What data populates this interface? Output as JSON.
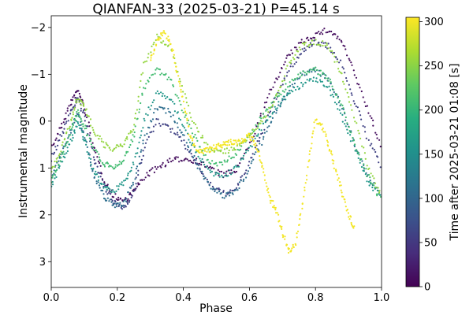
{
  "chart_data": {
    "type": "scatter",
    "title": "QIANFAN-33 (2025-03-21) P=45.14 s",
    "xlabel": "Phase",
    "ylabel": "Instrumental magnitude",
    "xlim": [
      0.0,
      1.0
    ],
    "ylim": [
      3.55,
      -2.25
    ],
    "y_inverted": true,
    "x_ticks": [
      "0.0",
      "0.2",
      "0.4",
      "0.6",
      "0.8",
      "1.0"
    ],
    "y_ticks": [
      "−2",
      "−1",
      "0",
      "1",
      "2",
      "3"
    ],
    "grid": false,
    "colorbar": {
      "label": "Time after 2025-03-21 01:08 [s]",
      "range": [
        0,
        305
      ],
      "ticks": [
        "0",
        "50",
        "100",
        "150",
        "200",
        "250",
        "300"
      ],
      "colormap": "viridis"
    },
    "series": [
      {
        "t": 10,
        "phase": [
          0.0,
          0.03,
          0.06,
          0.08,
          0.1,
          0.13,
          0.16,
          0.19,
          0.22,
          0.25,
          0.28,
          0.32,
          0.36,
          0.4,
          0.44,
          0.48,
          0.52,
          0.56,
          0.6,
          0.64,
          0.68,
          0.72,
          0.76,
          0.8,
          0.84,
          0.88,
          0.92,
          0.96,
          1.0
        ],
        "mag": [
          0.6,
          0.1,
          -0.4,
          -0.65,
          -0.3,
          0.6,
          1.25,
          1.6,
          1.7,
          1.5,
          1.2,
          1.0,
          0.85,
          0.8,
          0.85,
          1.0,
          1.15,
          1.05,
          0.5,
          -0.2,
          -0.9,
          -1.4,
          -1.7,
          -1.85,
          -1.95,
          -1.7,
          -1.0,
          -0.2,
          0.6
        ]
      },
      {
        "t": 60,
        "phase": [
          0.0,
          0.03,
          0.06,
          0.08,
          0.1,
          0.13,
          0.16,
          0.19,
          0.22,
          0.25,
          0.28,
          0.32,
          0.36,
          0.4,
          0.44,
          0.48,
          0.52,
          0.56,
          0.6,
          0.64,
          0.68,
          0.72,
          0.76,
          0.8,
          0.84,
          0.88,
          0.92,
          0.96,
          1.0
        ],
        "mag": [
          0.8,
          0.3,
          -0.2,
          -0.5,
          -0.1,
          0.8,
          1.4,
          1.75,
          1.85,
          1.5,
          0.6,
          0.0,
          0.15,
          0.45,
          0.9,
          1.35,
          1.55,
          1.45,
          0.9,
          0.2,
          -0.5,
          -1.1,
          -1.5,
          -1.7,
          -1.6,
          -1.2,
          -0.4,
          0.4,
          1.0
        ]
      },
      {
        "t": 110,
        "phase": [
          0.0,
          0.03,
          0.06,
          0.08,
          0.1,
          0.13,
          0.16,
          0.19,
          0.22,
          0.25,
          0.28,
          0.32,
          0.36,
          0.4,
          0.44,
          0.48,
          0.52,
          0.56,
          0.6,
          0.64,
          0.68,
          0.72,
          0.76,
          0.8,
          0.84,
          0.88,
          0.92,
          0.96,
          1.0
        ],
        "mag": [
          1.2,
          0.7,
          0.2,
          -0.2,
          0.3,
          1.2,
          1.6,
          1.8,
          1.75,
          1.3,
          0.4,
          -0.3,
          -0.2,
          0.3,
          0.9,
          1.4,
          1.6,
          1.5,
          1.0,
          0.4,
          -0.2,
          -0.7,
          -1.0,
          -1.1,
          -0.9,
          -0.3,
          0.5,
          1.2,
          1.6
        ]
      },
      {
        "t": 160,
        "phase": [
          0.0,
          0.03,
          0.06,
          0.08,
          0.1,
          0.13,
          0.16,
          0.19,
          0.22,
          0.25,
          0.28,
          0.32,
          0.36,
          0.4,
          0.44,
          0.48,
          0.52,
          0.56,
          0.6,
          0.64,
          0.68,
          0.72,
          0.76,
          0.8,
          0.84,
          0.88,
          0.92,
          0.96,
          1.0
        ],
        "mag": [
          1.4,
          0.9,
          0.4,
          0.0,
          0.4,
          1.1,
          1.4,
          1.5,
          1.3,
          0.9,
          0.0,
          -0.6,
          -0.5,
          0.1,
          0.7,
          1.1,
          1.2,
          1.0,
          0.6,
          0.1,
          -0.3,
          -0.6,
          -0.8,
          -0.9,
          -0.7,
          -0.1,
          0.6,
          1.3,
          1.6
        ]
      },
      {
        "t": 210,
        "phase": [
          0.0,
          0.03,
          0.06,
          0.08,
          0.1,
          0.13,
          0.16,
          0.19,
          0.22,
          0.25,
          0.28,
          0.32,
          0.36,
          0.4,
          0.44,
          0.48,
          0.52,
          0.56,
          0.6,
          0.64,
          0.68,
          0.72,
          0.76,
          0.8,
          0.84,
          0.88,
          0.92,
          0.96,
          1.0
        ],
        "mag": [
          1.3,
          0.8,
          0.2,
          -0.2,
          0.1,
          0.6,
          0.9,
          1.0,
          0.8,
          0.3,
          -0.7,
          -1.1,
          -0.9,
          -0.2,
          0.4,
          0.9,
          0.9,
          0.7,
          0.3,
          -0.1,
          -0.5,
          -0.8,
          -1.0,
          -1.1,
          -0.9,
          -0.3,
          0.5,
          1.2,
          1.7
        ]
      },
      {
        "t": 255,
        "phase": [
          0.0,
          0.03,
          0.06,
          0.08,
          0.1,
          0.13,
          0.16,
          0.19,
          0.22,
          0.25,
          0.28,
          0.32,
          0.36,
          0.4,
          0.44,
          0.48,
          0.52,
          0.56,
          0.6,
          0.64,
          0.68,
          0.72,
          0.76,
          0.8,
          0.84,
          0.88,
          0.92,
          0.96,
          1.0
        ],
        "mag": [
          1.1,
          0.6,
          0.0,
          -0.5,
          -0.3,
          0.2,
          0.5,
          0.6,
          0.5,
          0.1,
          -1.2,
          -1.8,
          -1.6,
          -0.6,
          0.2,
          0.6,
          0.65,
          0.6,
          0.3,
          0.0,
          -0.5,
          -1.2,
          -1.6,
          -1.7,
          -1.6,
          -1.0,
          0.0,
          1.0,
          1.6
        ]
      },
      {
        "t": 300,
        "phase": [
          0.3,
          0.32,
          0.34,
          0.36,
          0.38,
          0.4,
          0.42,
          0.44,
          0.46,
          0.48,
          0.5,
          0.52,
          0.54,
          0.56,
          0.58,
          0.6,
          0.62,
          0.64,
          0.66,
          0.68,
          0.7,
          0.72,
          0.74,
          0.76,
          0.78,
          0.8,
          0.82,
          0.84,
          0.86,
          0.88,
          0.9,
          0.92
        ],
        "mag": [
          -1.3,
          -1.7,
          -1.9,
          -1.7,
          -1.1,
          -0.4,
          0.3,
          0.6,
          0.65,
          0.6,
          0.55,
          0.5,
          0.45,
          0.45,
          0.4,
          0.3,
          0.5,
          1.0,
          1.6,
          1.9,
          2.4,
          2.8,
          2.6,
          1.8,
          0.8,
          0.0,
          0.1,
          0.5,
          1.0,
          1.5,
          2.0,
          2.3
        ]
      }
    ]
  }
}
